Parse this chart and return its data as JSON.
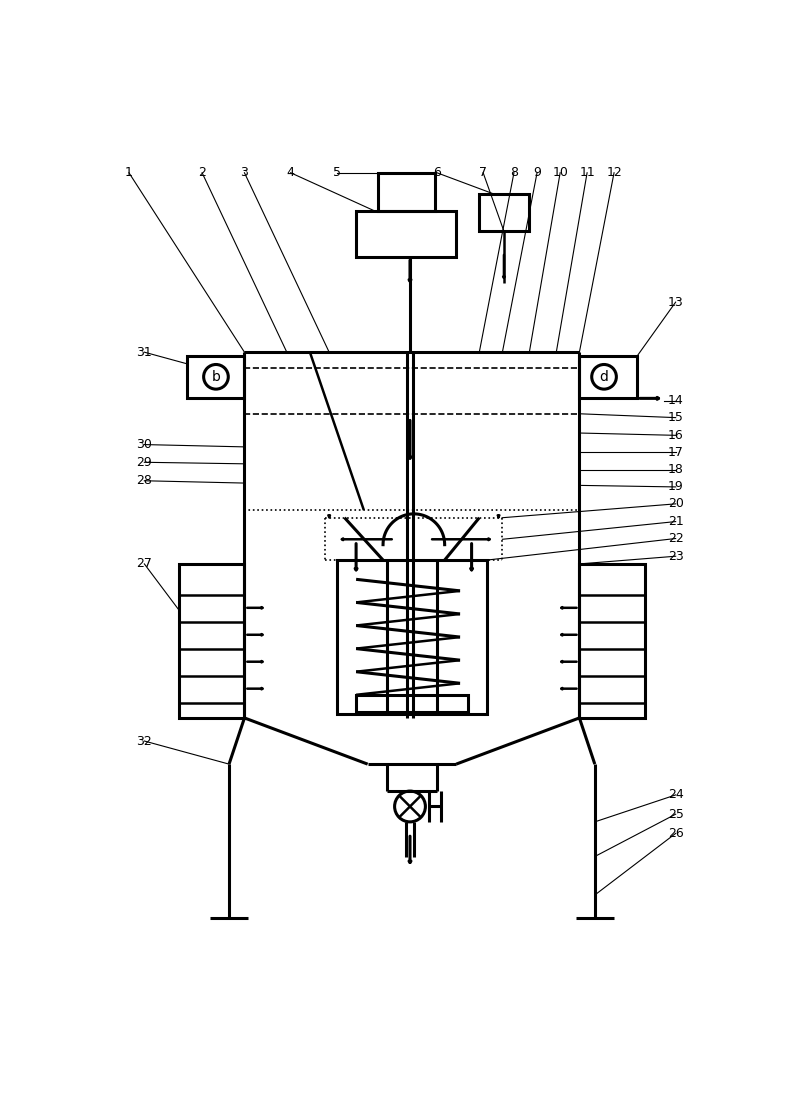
{
  "bg_color": "#ffffff",
  "line_color": "#000000",
  "lw_main": 1.8,
  "lw_thin": 1.0,
  "label_fs": 9
}
